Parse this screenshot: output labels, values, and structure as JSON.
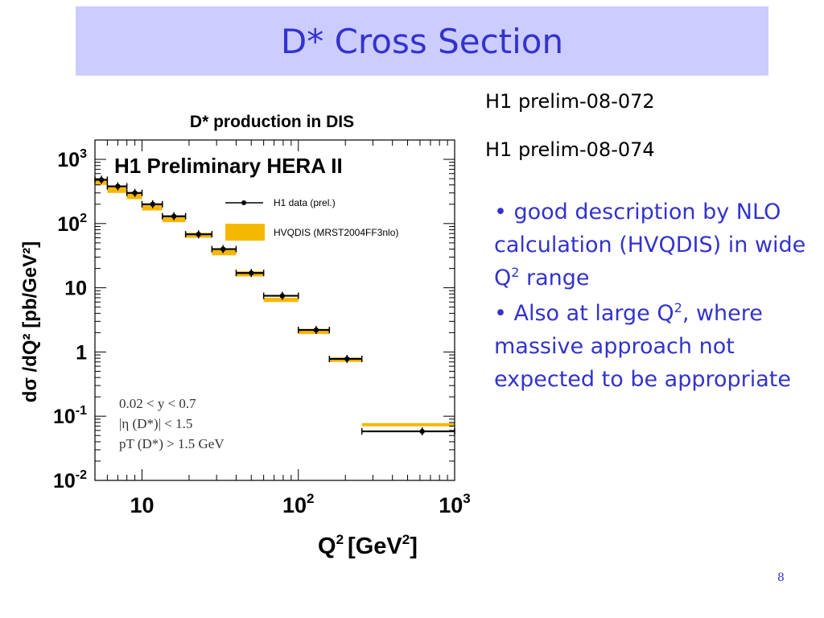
{
  "slide": {
    "title": "D* Cross Section",
    "refs": [
      "H1 prelim-08-072",
      "H1 prelim-08-074"
    ],
    "bullets": [
      {
        "prefix": "• good description by NLO calculation (HVQDIS) in wide Q",
        "sup": "2",
        "suffix": " range"
      },
      {
        "prefix": "• Also at large Q",
        "sup": "2",
        "suffix": ", where massive approach not expected to be appropriate"
      }
    ],
    "page_number": "8"
  },
  "chart_data": {
    "type": "scatter",
    "title": "D* production in DIS",
    "subtitle": "H1 Preliminary HERA II",
    "xlabel": "Q",
    "xlabel_sup": "2",
    "xlabel_unit": "[GeV",
    "ylabel": "dσ /dQ² [pb/GeV²]",
    "xscale": "log",
    "yscale": "log",
    "xlim": [
      5,
      1000
    ],
    "ylim": [
      0.01,
      2000
    ],
    "x_ticks": [
      {
        "v": 10,
        "base": "10",
        "exp": ""
      },
      {
        "v": 100,
        "base": "10",
        "exp": "2"
      },
      {
        "v": 1000,
        "base": "10",
        "exp": "3"
      }
    ],
    "y_ticks": [
      {
        "v": 0.01,
        "base": "10",
        "exp": "-2"
      },
      {
        "v": 0.1,
        "base": "10",
        "exp": "-1"
      },
      {
        "v": 1,
        "base": "1",
        "exp": ""
      },
      {
        "v": 10,
        "base": "10",
        "exp": ""
      },
      {
        "v": 100,
        "base": "10",
        "exp": "2"
      },
      {
        "v": 1000,
        "base": "10",
        "exp": "3"
      }
    ],
    "legend_position": "top-right",
    "legend": [
      "H1 data (prel.)",
      "HVQDIS (MRST2004FF3nlo)"
    ],
    "annotations": [
      "0.02 < y < 0.7",
      "|η (D*)| < 1.5",
      "pT (D*) > 1.5 GeV"
    ],
    "colors": {
      "data": "#000000",
      "band": "#f5b800",
      "frame": "#000000"
    },
    "series": [
      {
        "name": "H1 data (prel.)",
        "points": [
          {
            "x": 5.5,
            "xlo": 5,
            "xhi": 6,
            "y": 480
          },
          {
            "x": 7,
            "xlo": 6,
            "xhi": 8,
            "y": 380
          },
          {
            "x": 9,
            "xlo": 8,
            "xhi": 10,
            "y": 300
          },
          {
            "x": 11.7,
            "xlo": 10,
            "xhi": 13.5,
            "y": 200
          },
          {
            "x": 16,
            "xlo": 13.5,
            "xhi": 19,
            "y": 130
          },
          {
            "x": 23,
            "xlo": 19,
            "xhi": 28,
            "y": 68
          },
          {
            "x": 33,
            "xlo": 28,
            "xhi": 40,
            "y": 40
          },
          {
            "x": 50,
            "xlo": 40,
            "xhi": 60,
            "y": 17
          },
          {
            "x": 79,
            "xlo": 60,
            "xhi": 100,
            "y": 7.5
          },
          {
            "x": 130,
            "xlo": 100,
            "xhi": 158,
            "y": 2.2
          },
          {
            "x": 205,
            "xlo": 158,
            "xhi": 255,
            "y": 0.78
          },
          {
            "x": 620,
            "xlo": 255,
            "xhi": 1000,
            "y": 0.058
          }
        ]
      },
      {
        "name": "HVQDIS (MRST2004FF3nlo)",
        "bands": [
          {
            "xlo": 5,
            "xhi": 6,
            "lo": 400,
            "hi": 500
          },
          {
            "xlo": 6,
            "xhi": 8,
            "lo": 300,
            "hi": 370
          },
          {
            "xlo": 8,
            "xhi": 10,
            "lo": 240,
            "hi": 290
          },
          {
            "xlo": 10,
            "xhi": 13.5,
            "lo": 160,
            "hi": 195
          },
          {
            "xlo": 13.5,
            "xhi": 19,
            "lo": 105,
            "hi": 130
          },
          {
            "xlo": 19,
            "xhi": 28,
            "lo": 60,
            "hi": 72
          },
          {
            "xlo": 28,
            "xhi": 40,
            "lo": 32,
            "hi": 40
          },
          {
            "xlo": 40,
            "xhi": 60,
            "lo": 15,
            "hi": 18
          },
          {
            "xlo": 60,
            "xhi": 100,
            "lo": 6,
            "hi": 7
          },
          {
            "xlo": 100,
            "xhi": 158,
            "lo": 1.9,
            "hi": 2.3
          },
          {
            "xlo": 158,
            "xhi": 255,
            "lo": 0.7,
            "hi": 0.82
          },
          {
            "xlo": 255,
            "xhi": 1000,
            "lo": 0.072,
            "hi": 0.078
          }
        ]
      }
    ]
  }
}
